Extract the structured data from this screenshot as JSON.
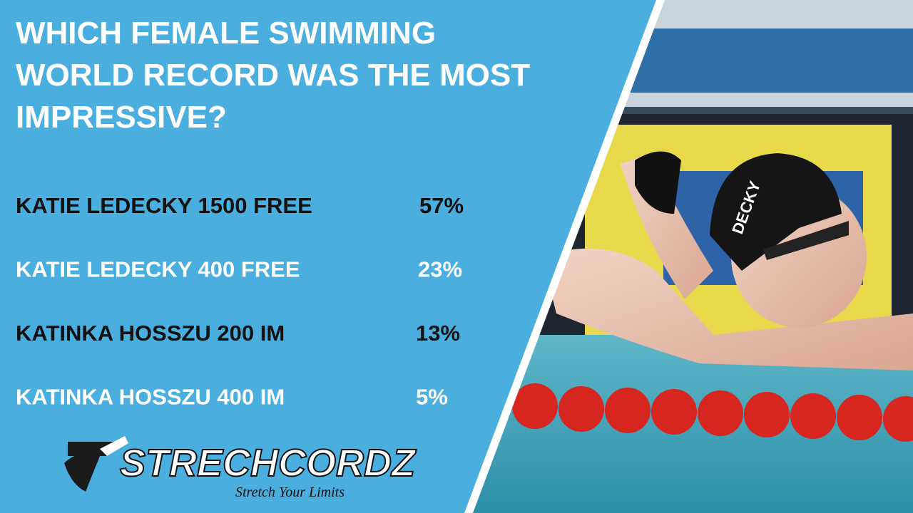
{
  "title_lines": [
    "WHICH FEMALE SWIMMING",
    "WORLD RECORD WAS THE MOST",
    "IMPRESSIVE?"
  ],
  "results": [
    {
      "label": "KATIE LEDECKY 1500 FREE",
      "percent": "57%"
    },
    {
      "label": "KATIE LEDECKY 400 FREE",
      "percent": "23%"
    },
    {
      "label": "KATINKA HOSSZU 200 IM",
      "percent": "13%"
    },
    {
      "label": "KATINKA HOSSZU 400 IM",
      "percent": "5%"
    }
  ],
  "logo": {
    "brand": "STRECHCORDZ",
    "tagline": "Stretch Your Limits"
  },
  "photo": {
    "cap_text": "DECKY"
  }
}
